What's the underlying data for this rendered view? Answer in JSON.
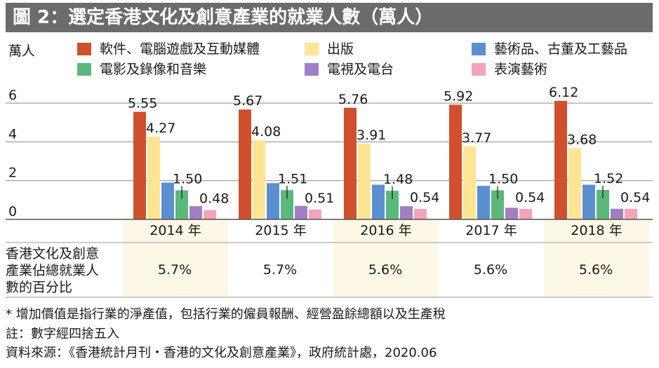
{
  "title": "圖 2：選定香港文化及創意產業的就業人數（萬人）",
  "unit_label": "萬人",
  "colors": {
    "title_bg": "#6b6b6b",
    "band": "#fdf7e6",
    "series": [
      "#d0502d",
      "#fde594",
      "#5b8fd0",
      "#5bb87b",
      "#a27fc4",
      "#f2a4b9"
    ]
  },
  "chart_data": {
    "type": "bar",
    "categories": [
      "2014 年",
      "2015 年",
      "2016 年",
      "2017 年",
      "2018 年"
    ],
    "series": [
      {
        "name": "軟件、電腦遊戲及互動媒體",
        "values": [
          5.55,
          5.67,
          5.76,
          5.92,
          6.12
        ]
      },
      {
        "name": "出版",
        "values": [
          4.27,
          4.08,
          3.91,
          3.77,
          3.68
        ]
      },
      {
        "name": "藝術品、古董及工藝品",
        "values": [
          1.9,
          1.87,
          1.79,
          1.73,
          1.79
        ]
      },
      {
        "name": "電影及錄像和音樂",
        "values": [
          1.5,
          1.51,
          1.48,
          1.5,
          1.52
        ]
      },
      {
        "name": "電視及電台",
        "values": [
          0.68,
          0.7,
          0.68,
          0.6,
          0.55
        ]
      },
      {
        "name": "表演藝術",
        "values": [
          0.48,
          0.51,
          0.54,
          0.54,
          0.54
        ]
      }
    ],
    "value_labels": [
      [
        "5.55",
        "4.27",
        "1.50",
        "0.48"
      ],
      [
        "5.67",
        "4.08",
        "1.51",
        "0.51"
      ],
      [
        "5.76",
        "3.91",
        "1.48",
        "0.54"
      ],
      [
        "5.92",
        "3.77",
        "1.50",
        "0.54"
      ],
      [
        "6.12",
        "3.68",
        "1.52",
        "0.54"
      ]
    ],
    "yticks": [
      "0",
      "2",
      "4",
      "6"
    ],
    "ylim": [
      0,
      6.8
    ]
  },
  "share": {
    "label_lines": [
      "香港文化及創意",
      "產業佔總就業人",
      "數的百分比"
    ],
    "values": [
      "5.7%",
      "5.7%",
      "5.6%",
      "5.6%",
      "5.6%"
    ]
  },
  "notes": [
    "* 增加價值是指行業的淨產值，包括行業的僱員報酬、經營盈餘總額以及生產稅",
    "註：數字經四捨五入",
    "資料來源：《香港統計月刊・香港的文化及創意產業》，政府統計處，2020.06"
  ]
}
